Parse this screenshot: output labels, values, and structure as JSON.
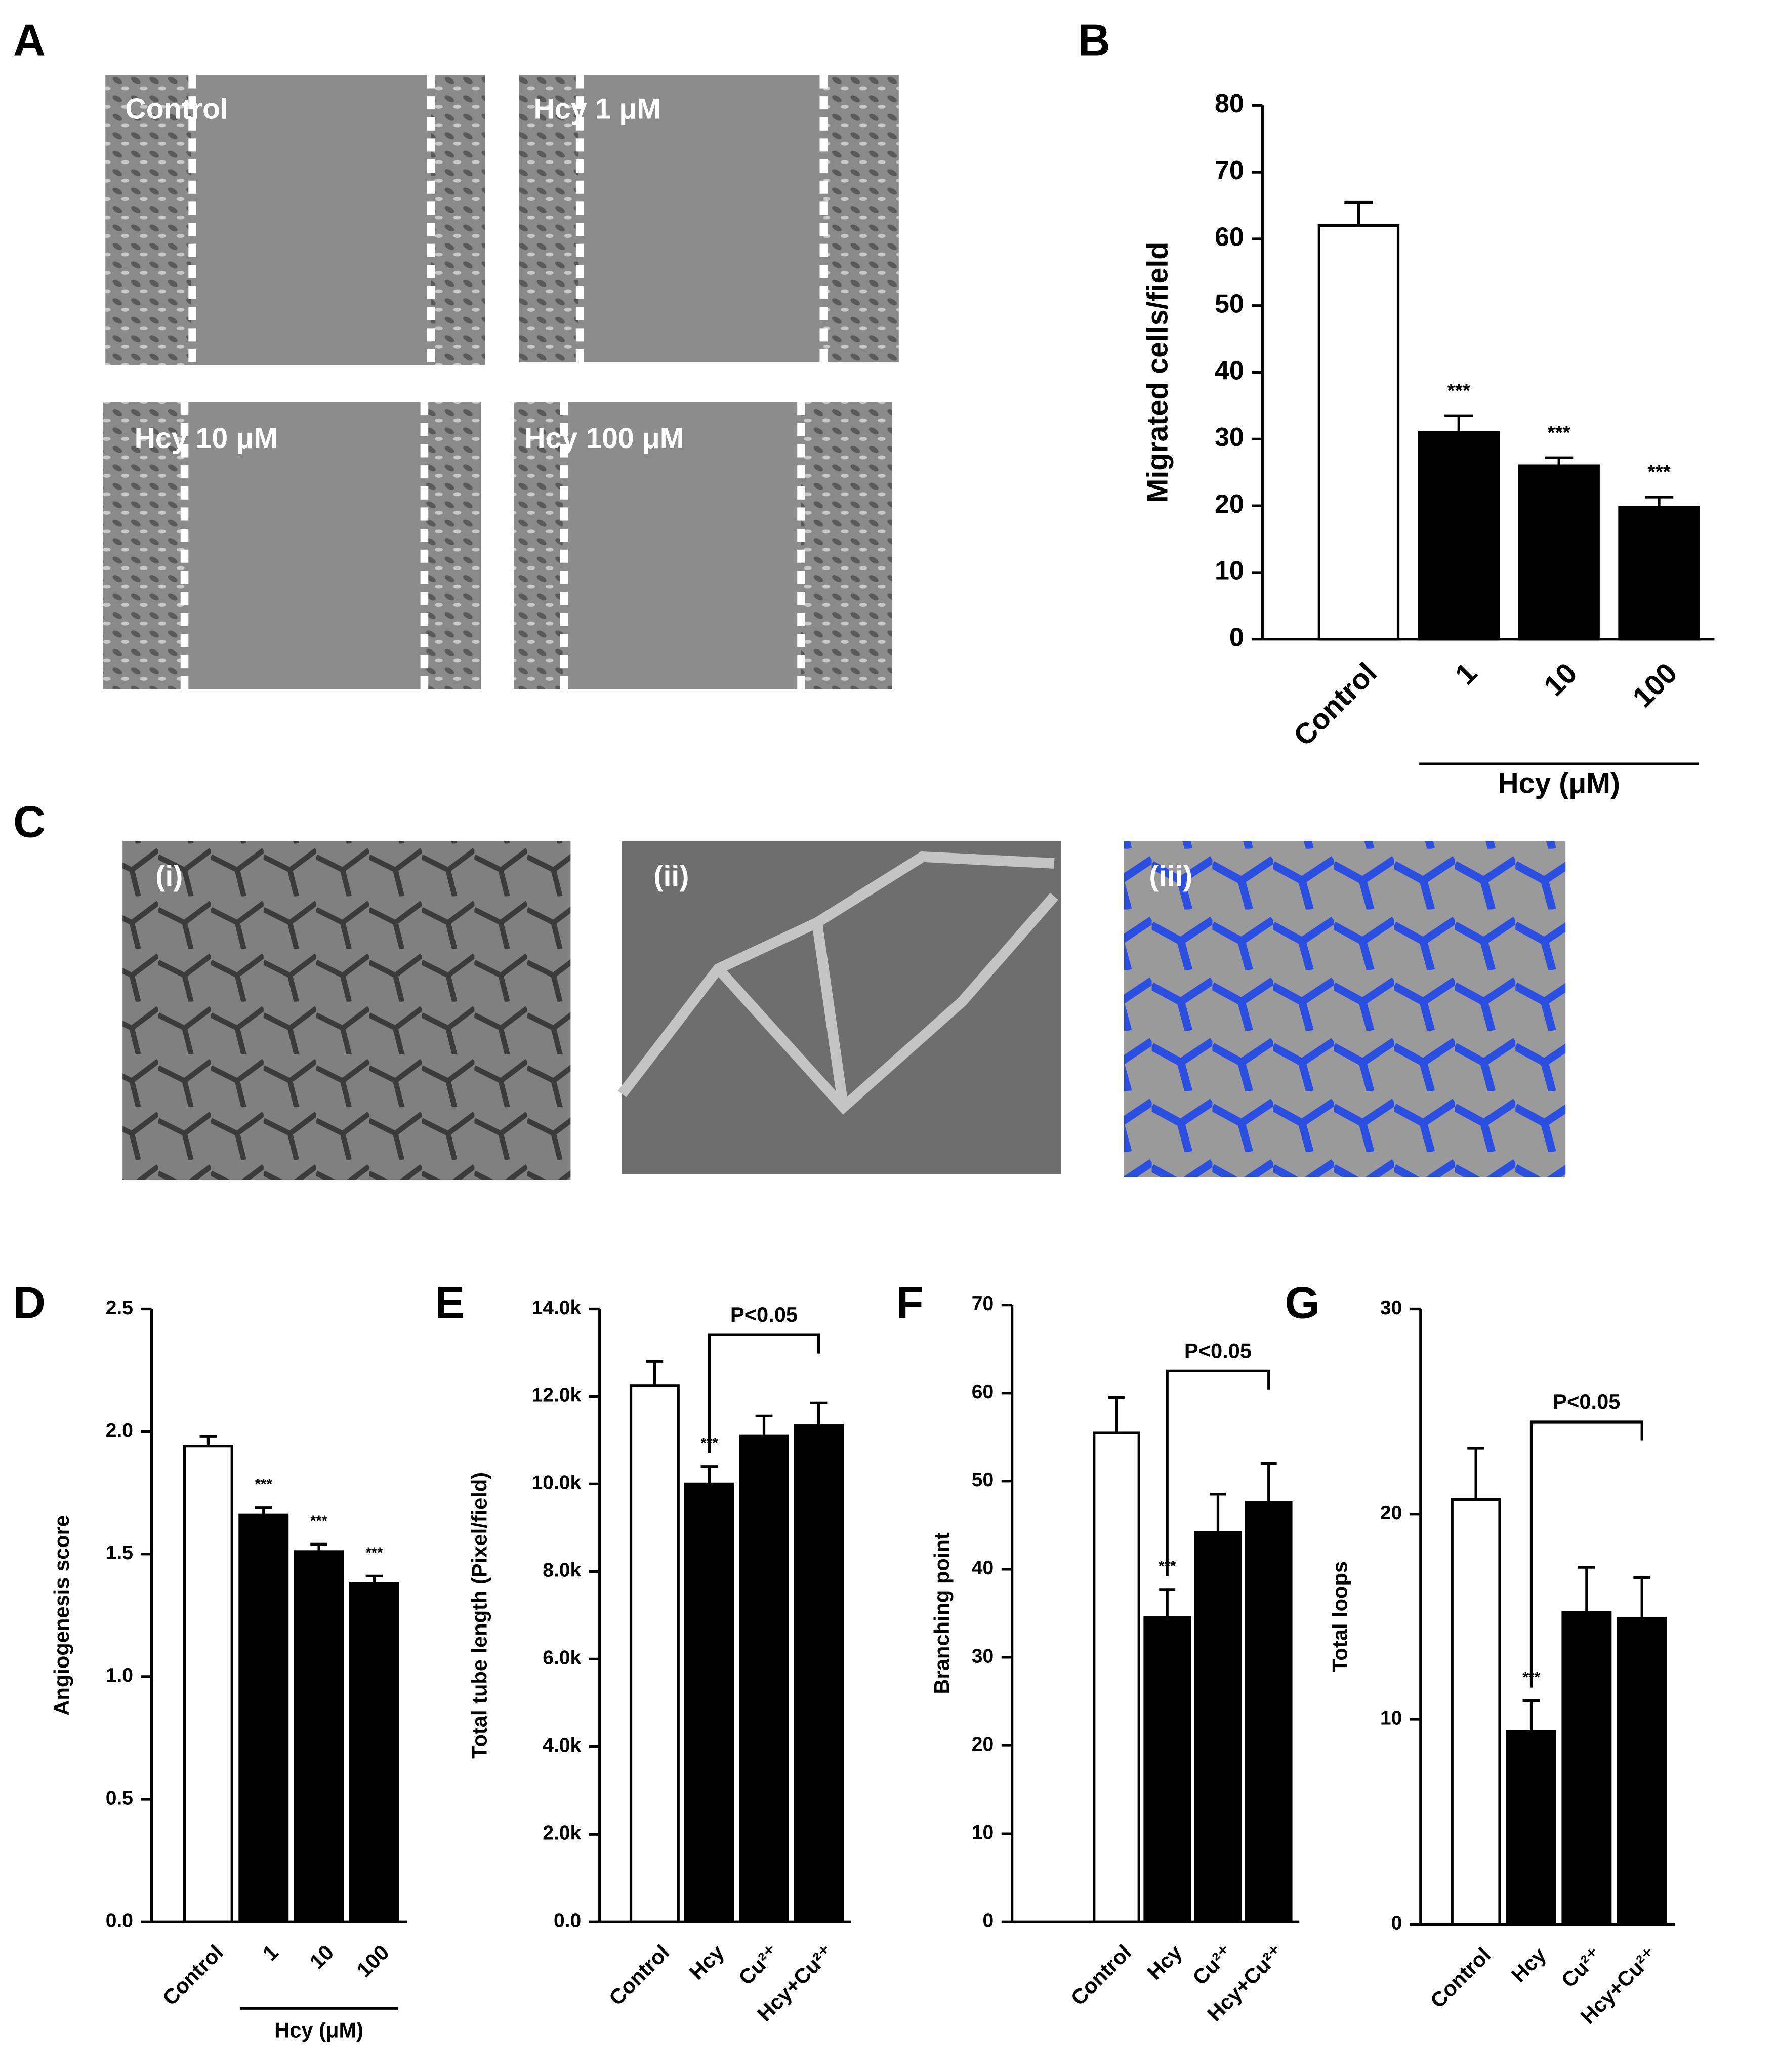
{
  "figure": {
    "panel_labels": [
      "A",
      "B",
      "C",
      "D",
      "E",
      "F",
      "G"
    ],
    "wound_images": [
      "Control",
      "Hcy 1 μM",
      "Hcy 10 μM",
      "Hcy 100 μM"
    ],
    "tube_images": [
      "(i)",
      "(ii)",
      "(iii)"
    ]
  },
  "chart_data": [
    {
      "type": "bar",
      "ylabel": "Migrated cells/field",
      "categories": [
        "Control",
        "1",
        "10",
        "100"
      ],
      "group_label": "Hcy (μM)",
      "group_span": [
        1,
        3
      ],
      "values": [
        62,
        31,
        26,
        19.8
      ],
      "errors": [
        3.5,
        2.5,
        1.2,
        1.5
      ],
      "significance": [
        null,
        "***",
        "***",
        "***"
      ],
      "colors": [
        "#ffffff",
        "#000000",
        "#000000",
        "#000000"
      ],
      "edgecolor": "#000000",
      "ylim": [
        0,
        80
      ],
      "yticks": [
        0,
        10,
        20,
        30,
        40,
        50,
        60,
        70,
        80
      ]
    },
    {
      "type": "bar",
      "ylabel": "Angiogenesis score",
      "categories": [
        "Control",
        "1",
        "10",
        "100"
      ],
      "group_label": "Hcy (μM)",
      "group_span": [
        1,
        3
      ],
      "values": [
        1.94,
        1.66,
        1.51,
        1.38
      ],
      "errors": [
        0.04,
        0.03,
        0.03,
        0.03
      ],
      "significance": [
        null,
        "***",
        "***",
        "***"
      ],
      "colors": [
        "#ffffff",
        "#000000",
        "#000000",
        "#000000"
      ],
      "edgecolor": "#000000",
      "ylim": [
        0,
        2.5
      ],
      "yticks": [
        {
          "value": 0,
          "label": "0.0"
        },
        0.5,
        {
          "value": 1,
          "label": "1.0"
        },
        1.5,
        {
          "value": 2,
          "label": "2.0"
        },
        2.5
      ]
    },
    {
      "type": "bar",
      "ylabel": "Total tube length (Pixel/field)",
      "categories": [
        "Control",
        "Hcy",
        "Cu²⁺",
        "Hcy+Cu²⁺"
      ],
      "values": [
        12250,
        10000,
        11100,
        11350
      ],
      "errors": [
        550,
        400,
        450,
        500
      ],
      "significance": [
        null,
        "***",
        null,
        null
      ],
      "bracket": {
        "from": 1,
        "to": 3,
        "label": "P<0.05"
      },
      "colors": [
        "#ffffff",
        "#000000",
        "#000000",
        "#000000"
      ],
      "edgecolor": "#000000",
      "ylim": [
        0,
        14000
      ],
      "yticks": [
        {
          "value": 0,
          "label": "0.0"
        },
        {
          "value": 2000,
          "label": "2.0k"
        },
        {
          "value": 4000,
          "label": "4.0k"
        },
        {
          "value": 6000,
          "label": "6.0k"
        },
        {
          "value": 8000,
          "label": "8.0k"
        },
        {
          "value": 10000,
          "label": "10.0k"
        },
        {
          "value": 12000,
          "label": "12.0k"
        },
        {
          "value": 14000,
          "label": "14.0k"
        }
      ]
    },
    {
      "type": "bar",
      "ylabel": "Branching point",
      "categories": [
        "Control",
        "Hcy",
        "Cu²⁺",
        "Hcy+Cu²⁺"
      ],
      "values": [
        55.5,
        34.5,
        44.2,
        47.6
      ],
      "errors": [
        4,
        3.2,
        4.3,
        4.4
      ],
      "significance": [
        null,
        "***",
        null,
        null
      ],
      "bracket": {
        "from": 1,
        "to": 3,
        "label": "P<0.05"
      },
      "colors": [
        "#ffffff",
        "#000000",
        "#000000",
        "#000000"
      ],
      "edgecolor": "#000000",
      "ylim": [
        0,
        70
      ],
      "yticks": [
        0,
        10,
        20,
        30,
        40,
        50,
        60,
        70
      ]
    },
    {
      "type": "bar",
      "ylabel": "Total loops",
      "categories": [
        "Control",
        "Hcy",
        "Cu²⁺",
        "Hcy+Cu²⁺"
      ],
      "values": [
        20.7,
        9.4,
        15.2,
        14.9
      ],
      "errors": [
        2.5,
        1.5,
        2.2,
        2.0
      ],
      "significance": [
        null,
        "***",
        null,
        null
      ],
      "bracket": {
        "from": 1,
        "to": 3,
        "label": "P<0.05"
      },
      "colors": [
        "#ffffff",
        "#000000",
        "#000000",
        "#000000"
      ],
      "edgecolor": "#000000",
      "ylim": [
        0,
        30
      ],
      "yticks": [
        0,
        10,
        20,
        30
      ]
    }
  ]
}
